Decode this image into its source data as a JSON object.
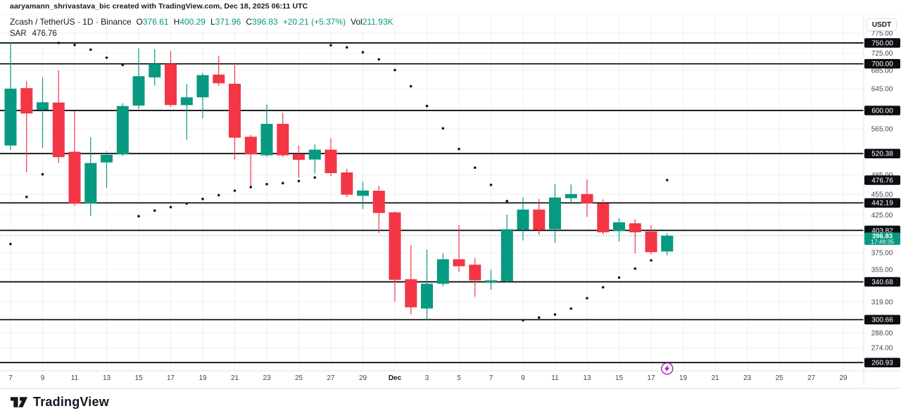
{
  "watermark": "aaryamann_shrivastava_bic created with TradingView.com, Dec 18, 2025 06:11 UTC",
  "legend": {
    "title": "Zcash / TetherUS · 1D · Binance",
    "pairs": [
      {
        "k": "O",
        "v": "376.61"
      },
      {
        "k": "H",
        "v": "400.29"
      },
      {
        "k": "L",
        "v": "371.96"
      },
      {
        "k": "C",
        "v": "396.83"
      }
    ],
    "change": "+20.21 (+5.37%)",
    "vol_label": "Vol",
    "vol_value": "211.93K",
    "indicator_label": "SAR",
    "indicator_value": "476.76"
  },
  "axis": {
    "currency_button": "USDT"
  },
  "footer": {
    "brand": "TradingView"
  },
  "colors": {
    "up": "#089981",
    "down": "#f23645",
    "level_line": "#000000",
    "sar_dot": "#131722",
    "label_bg": "#0b0d12",
    "last_label_bg": "#089981",
    "axis_text": "#42464e",
    "event_purple": "#9c27b0",
    "separator": "#e0e3eb",
    "grid": "rgba(19,23,34,0.055)"
  },
  "chart_data": {
    "type": "candlestick",
    "title": "Zcash / TetherUS 1D Binance with Parabolic SAR",
    "x_axis_dates": [
      "Nov 7",
      "Nov 8",
      "Nov 9",
      "Nov 10",
      "Nov 11",
      "Nov 12",
      "Nov 13",
      "Nov 14",
      "Nov 15",
      "Nov 16",
      "Nov 17",
      "Nov 18",
      "Nov 19",
      "Nov 20",
      "Nov 21",
      "Nov 22",
      "Nov 23",
      "Nov 24",
      "Nov 25",
      "Nov 26",
      "Nov 27",
      "Nov 28",
      "Nov 29",
      "Nov 30",
      "Dec 1",
      "Dec 2",
      "Dec 3",
      "Dec 4",
      "Dec 5",
      "Dec 6",
      "Dec 7",
      "Dec 8",
      "Dec 9",
      "Dec 10",
      "Dec 11",
      "Dec 12",
      "Dec 13",
      "Dec 14",
      "Dec 15",
      "Dec 16",
      "Dec 17",
      "Dec 18"
    ],
    "ohlc": [
      [
        534.5,
        751.7,
        526.4,
        644.9
      ],
      [
        646.0,
        661.0,
        489.0,
        594.0
      ],
      [
        601.4,
        669.3,
        530.5,
        616.6
      ],
      [
        616.0,
        685.0,
        504.4,
        514.3
      ],
      [
        523.5,
        598.5,
        438.0,
        441.0
      ],
      [
        441.2,
        549.3,
        423.7,
        504.4
      ],
      [
        505.5,
        524.4,
        465.0,
        518.3
      ],
      [
        519.0,
        614.6,
        516.3,
        608.9
      ],
      [
        609.8,
        737.4,
        602.8,
        671.9
      ],
      [
        669.3,
        734.5,
        651.3,
        700.0
      ],
      [
        700.0,
        729.9,
        607.4,
        610.8
      ],
      [
        610.8,
        654.9,
        545.1,
        626.7
      ],
      [
        626.7,
        679.8,
        584.5,
        674.4
      ],
      [
        675.5,
        718.8,
        651.3,
        656.5
      ],
      [
        655.4,
        696.7,
        510.3,
        548.4
      ],
      [
        550.2,
        553.5,
        466.9,
        519.2
      ],
      [
        517.5,
        612.3,
        514.3,
        574.1
      ],
      [
        574.1,
        595.9,
        514.3,
        517.5
      ],
      [
        519.2,
        534.5,
        480.4,
        509.6
      ],
      [
        510.3,
        536.6,
        487.1,
        527.2
      ],
      [
        527.2,
        547.1,
        483.4,
        487.9
      ],
      [
        489.0,
        494.8,
        450.8,
        454.3
      ],
      [
        452.6,
        474.2,
        433.6,
        460.7
      ],
      [
        460.4,
        467.9,
        400.0,
        427.7
      ],
      [
        428.6,
        430.0,
        319.4,
        342.9
      ],
      [
        343.7,
        384.6,
        306.0,
        313.2
      ],
      [
        312.0,
        378.7,
        300.1,
        338.5
      ],
      [
        338.5,
        374.3,
        335.8,
        367.1
      ],
      [
        367.1,
        410.8,
        351.8,
        358.7
      ],
      [
        360.6,
        368.5,
        324.3,
        342.4
      ],
      [
        339.7,
        354.5,
        331.9,
        342.4
      ],
      [
        341.1,
        425.4,
        340.0,
        405.4
      ],
      [
        404.4,
        450.1,
        390.6,
        432.6
      ],
      [
        432.6,
        448.0,
        398.3,
        404.4
      ],
      [
        405.4,
        470.4,
        387.6,
        450.1
      ],
      [
        449.0,
        470.0,
        442.2,
        455.3
      ],
      [
        455.3,
        477.8,
        422.1,
        441.5
      ],
      [
        441.5,
        447.4,
        398.3,
        401.3
      ],
      [
        402.9,
        420.5,
        389.1,
        414.7
      ],
      [
        413.4,
        418.8,
        374.3,
        401.3
      ],
      [
        402.3,
        410.8,
        372.8,
        375.8
      ],
      [
        376.61,
        400.29,
        371.96,
        396.83
      ]
    ],
    "sar": [
      386,
      451,
      486,
      750,
      745,
      733.4,
      714.3,
      697.4,
      423.1,
      431,
      436.1,
      441.2,
      448,
      453.7,
      460.4,
      465.8,
      470.4,
      472,
      475.3,
      480.8,
      744.3,
      739.1,
      727.2,
      710.3,
      685.7,
      649.9,
      608.8,
      565.6,
      528.4,
      496.7,
      469.3,
      444.9,
      300.1,
      302.8,
      305.9,
      311.8,
      322.8,
      334.6,
      345.6,
      355.9,
      365.7,
      476.76
    ],
    "sar_current": 476.76,
    "horizontal_levels": [
      {
        "price": 750.0,
        "label": "750.00"
      },
      {
        "price": 700.0,
        "label": "700.00"
      },
      {
        "price": 600.0,
        "label": "600.00"
      },
      {
        "price": 520.38,
        "label": "520.38"
      },
      {
        "price": 442.19,
        "label": "442.19"
      },
      {
        "price": 403.82,
        "label": "403.82"
      },
      {
        "price": 340.68,
        "label": "340.68"
      },
      {
        "price": 300.66,
        "label": "300.66"
      },
      {
        "price": 260.93,
        "label": "260.93"
      }
    ],
    "sar_axis_label": {
      "price": 476.76,
      "label": "476.76"
    },
    "last_price": {
      "price": 396.83,
      "label": "396.83",
      "countdown": "17:48:35"
    },
    "y_ticks": [
      775,
      725,
      685,
      645,
      565,
      485,
      455,
      425,
      375,
      355,
      339,
      319,
      288,
      274
    ],
    "x_ticks": [
      {
        "label": "7",
        "i": 0
      },
      {
        "label": "9",
        "i": 2
      },
      {
        "label": "11",
        "i": 4
      },
      {
        "label": "13",
        "i": 6
      },
      {
        "label": "15",
        "i": 8
      },
      {
        "label": "17",
        "i": 10
      },
      {
        "label": "19",
        "i": 12
      },
      {
        "label": "21",
        "i": 14
      },
      {
        "label": "23",
        "i": 16
      },
      {
        "label": "25",
        "i": 18
      },
      {
        "label": "27",
        "i": 20
      },
      {
        "label": "29",
        "i": 22
      },
      {
        "label": "Dec",
        "i": 24,
        "bold": true
      },
      {
        "label": "3",
        "i": 26
      },
      {
        "label": "5",
        "i": 28
      },
      {
        "label": "7",
        "i": 30
      },
      {
        "label": "9",
        "i": 32
      },
      {
        "label": "11",
        "i": 34
      },
      {
        "label": "13",
        "i": 36
      },
      {
        "label": "15",
        "i": 38
      },
      {
        "label": "17",
        "i": 40
      },
      {
        "label": "19",
        "i": 42
      },
      {
        "label": "21",
        "i": 44
      },
      {
        "label": "23",
        "i": 46
      },
      {
        "label": "25",
        "i": 48
      },
      {
        "label": "27",
        "i": 50
      },
      {
        "label": "29",
        "i": 52
      }
    ],
    "event_marker": {
      "candle_index": 41,
      "at_price": 260.93
    },
    "y_scale": "log",
    "grid": true
  }
}
